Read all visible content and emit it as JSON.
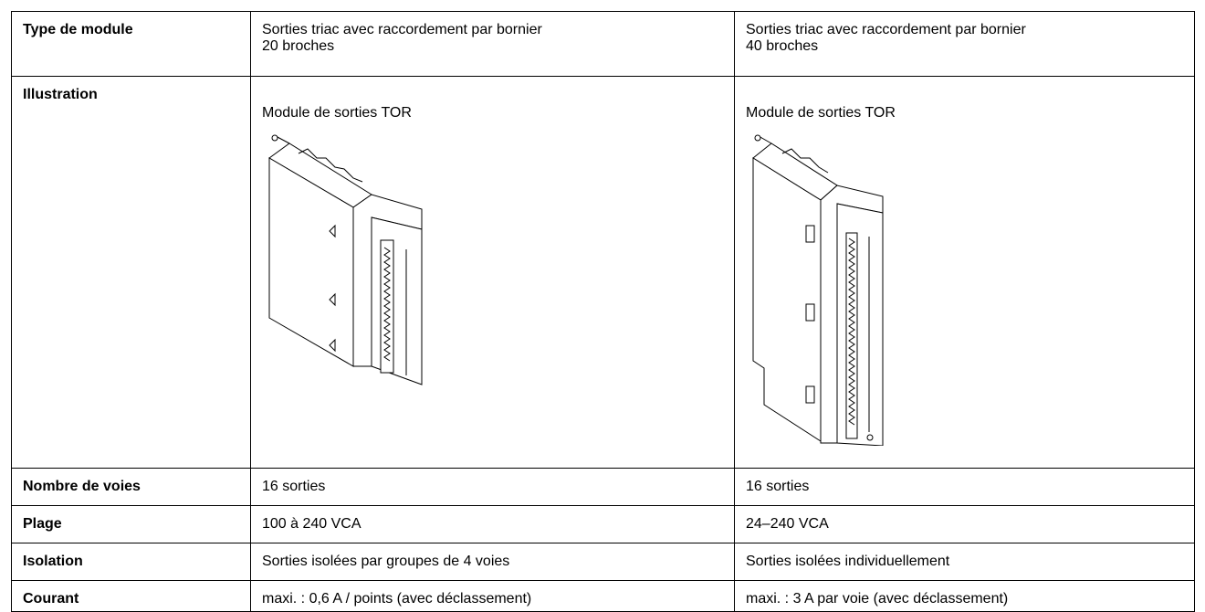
{
  "table": {
    "rows": [
      {
        "label": "Type de module",
        "cells": [
          [
            "Sorties triac avec raccordement par bornier",
            "20 broches"
          ],
          [
            "Sorties triac avec raccordement par bornier",
            "40 broches"
          ]
        ]
      },
      {
        "label": "Illustration",
        "cells": [
          "Module de sorties TOR",
          "Module de sorties TOR"
        ]
      },
      {
        "label": "Nombre de voies",
        "cells": [
          "16 sorties",
          "16 sorties"
        ]
      },
      {
        "label": "Plage",
        "cells": [
          "100 à 240 VCA",
          "24–240 VCA"
        ]
      },
      {
        "label": "Isolation",
        "cells": [
          "Sorties isolées par groupes de 4 voies",
          "Sorties isolées individuellement"
        ]
      },
      {
        "label": "Courant",
        "cells": [
          "maxi. : 0,6 A / points (avec déclassement)",
          "maxi. : 3 A par voie (avec déclassement)"
        ]
      }
    ]
  }
}
